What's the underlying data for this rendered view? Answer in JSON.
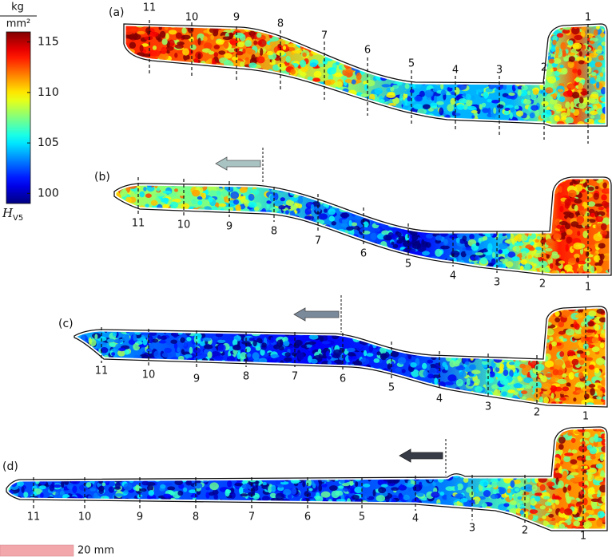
{
  "colorbar": {
    "unit_numerator": "kg",
    "unit_denominator": "mm²",
    "symbol": "H",
    "symbol_subscript": "V5",
    "range": [
      99,
      116
    ],
    "ticks": [
      115,
      110,
      105,
      100
    ]
  },
  "panels": [
    {
      "label": "(a)",
      "sections": [
        "11",
        "10",
        "9",
        "8",
        "7",
        "6",
        "5",
        "4",
        "3",
        "2",
        "1"
      ]
    },
    {
      "label": "(b)",
      "sections": [
        "11",
        "10",
        "9",
        "8",
        "7",
        "6",
        "5",
        "4",
        "3",
        "2",
        "1"
      ]
    },
    {
      "label": "(c)",
      "sections": [
        "11",
        "10",
        "9",
        "8",
        "7",
        "6",
        "5",
        "4",
        "3",
        "2",
        "1"
      ]
    },
    {
      "label": "(d)",
      "sections": [
        "11",
        "10",
        "9",
        "8",
        "7",
        "6",
        "5",
        "4",
        "3",
        "2",
        "1"
      ]
    }
  ],
  "scale_bar": {
    "label": "20 mm"
  }
}
